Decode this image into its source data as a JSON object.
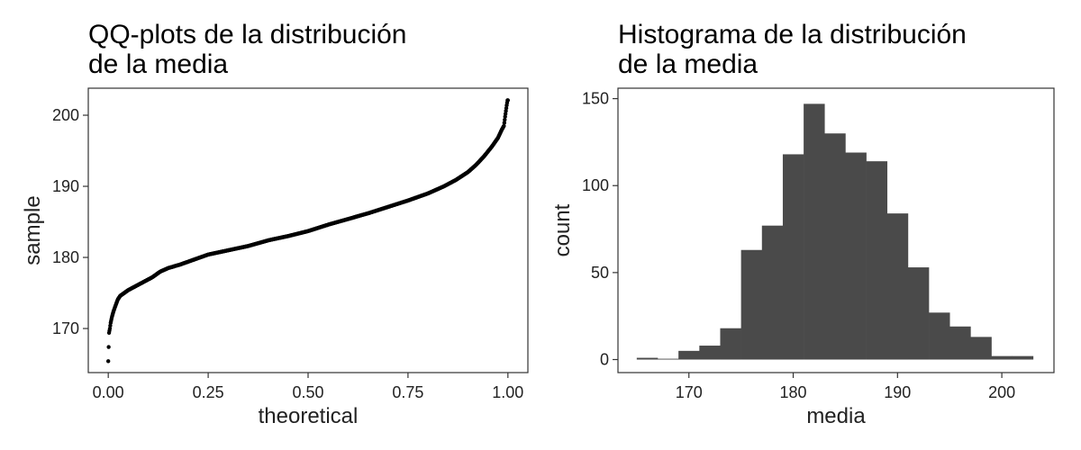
{
  "chart_data": [
    {
      "type": "scatter",
      "title_lines": [
        "QQ-plots de la distribución",
        "de la media"
      ],
      "xlabel": "theoretical",
      "ylabel": "sample",
      "xlim": [
        -0.05,
        1.05
      ],
      "ylim": [
        163.8,
        203.8
      ],
      "xticks": [
        0.0,
        0.25,
        0.5,
        0.75,
        1.0
      ],
      "xtick_labels": [
        "0.00",
        "0.25",
        "0.50",
        "0.75",
        "1.00"
      ],
      "yticks": [
        170,
        180,
        190,
        200
      ],
      "ytick_labels": [
        "170",
        "180",
        "190",
        "200"
      ],
      "grid": false,
      "curve": [
        [
          0.0,
          165.4
        ],
        [
          0.002,
          169.4
        ],
        [
          0.004,
          170.0
        ],
        [
          0.006,
          170.8
        ],
        [
          0.009,
          171.6
        ],
        [
          0.013,
          172.4
        ],
        [
          0.018,
          173.2
        ],
        [
          0.024,
          174.1
        ],
        [
          0.03,
          174.6
        ],
        [
          0.04,
          175.0
        ],
        [
          0.05,
          175.4
        ],
        [
          0.07,
          176.0
        ],
        [
          0.09,
          176.6
        ],
        [
          0.11,
          177.2
        ],
        [
          0.13,
          178.0
        ],
        [
          0.15,
          178.5
        ],
        [
          0.18,
          179.0
        ],
        [
          0.21,
          179.6
        ],
        [
          0.25,
          180.4
        ],
        [
          0.3,
          181.0
        ],
        [
          0.35,
          181.6
        ],
        [
          0.4,
          182.4
        ],
        [
          0.45,
          183.0
        ],
        [
          0.5,
          183.7
        ],
        [
          0.55,
          184.6
        ],
        [
          0.6,
          185.4
        ],
        [
          0.65,
          186.2
        ],
        [
          0.7,
          187.1
        ],
        [
          0.75,
          188.0
        ],
        [
          0.8,
          189.0
        ],
        [
          0.84,
          190.0
        ],
        [
          0.87,
          190.9
        ],
        [
          0.9,
          192.0
        ],
        [
          0.92,
          193.0
        ],
        [
          0.94,
          194.2
        ],
        [
          0.96,
          195.6
        ],
        [
          0.975,
          196.8
        ],
        [
          0.985,
          198.0
        ],
        [
          0.99,
          198.5
        ],
        [
          0.993,
          199.8
        ],
        [
          0.995,
          200.6
        ],
        [
          0.997,
          201.4
        ],
        [
          0.999,
          202.1
        ]
      ]
    },
    {
      "type": "bar",
      "title_lines": [
        "Histograma de la distribución",
        "de la media"
      ],
      "xlabel": "media",
      "ylabel": "count",
      "xlim": [
        163.2,
        205.0
      ],
      "ylim": [
        -7.5,
        156
      ],
      "xticks": [
        170,
        180,
        190,
        200
      ],
      "xtick_labels": [
        "170",
        "180",
        "190",
        "200"
      ],
      "yticks": [
        0,
        50,
        100,
        150
      ],
      "ytick_labels": [
        "0",
        "50",
        "100",
        "150"
      ],
      "grid": false,
      "bar_color": "#4a4a4a",
      "bin_edges": [
        165,
        167,
        169,
        171,
        173,
        175,
        177,
        179,
        181,
        183,
        185,
        187,
        189,
        191,
        193,
        195,
        197,
        199,
        201,
        203
      ],
      "counts": [
        1,
        0,
        5,
        8,
        18,
        63,
        77,
        118,
        147,
        130,
        119,
        114,
        84,
        53,
        27,
        19,
        13,
        2,
        2
      ]
    }
  ]
}
